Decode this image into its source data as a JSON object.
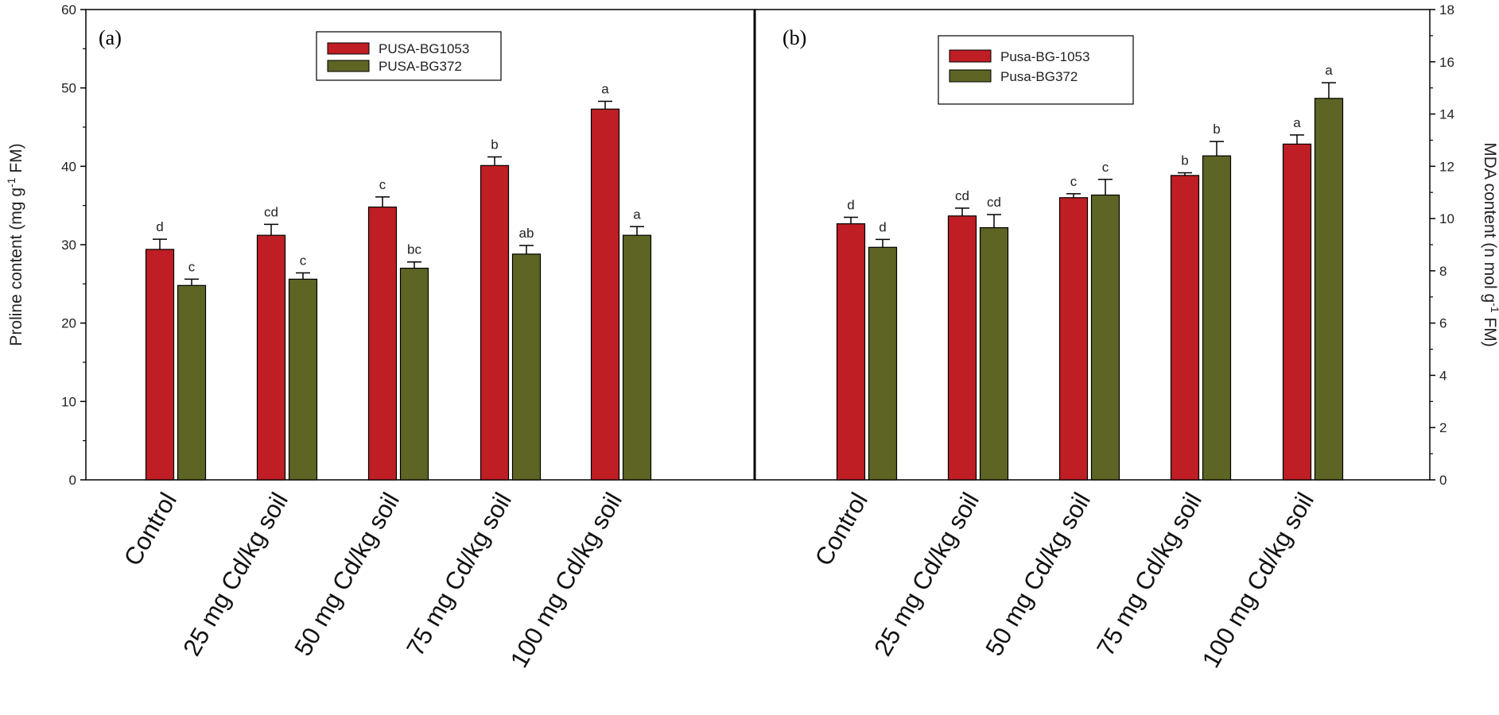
{
  "colors": {
    "series1": "#be1e24",
    "series2": "#5e6424",
    "axis": "#000000"
  },
  "chart_data": [
    {
      "type": "bar",
      "panel_label": "(a)",
      "categories": [
        "Control",
        "25 mg Cd/kg soil",
        "50 mg Cd/kg soil",
        "75 mg Cd/kg soil",
        "100 mg Cd/kg soil"
      ],
      "ylabel": "Proline content (mg g",
      "ylabel_sup": "-1",
      "ylabel_tail": " FM)",
      "yaxis_side": "left",
      "ylim": [
        0,
        60
      ],
      "yticks": [
        0,
        10,
        20,
        30,
        40,
        50,
        60
      ],
      "legend_position": "top-center",
      "series": [
        {
          "name": "PUSA-BG1053",
          "values": [
            29.4,
            31.2,
            34.8,
            40.1,
            47.3
          ],
          "errors": [
            1.3,
            1.4,
            1.3,
            1.1,
            1.0
          ],
          "letters": [
            "d",
            "cd",
            "c",
            "b",
            "a"
          ]
        },
        {
          "name": "PUSA-BG372",
          "values": [
            24.8,
            25.6,
            27.0,
            28.8,
            31.2
          ],
          "errors": [
            0.8,
            0.8,
            0.8,
            1.1,
            1.1
          ],
          "letters": [
            "c",
            "c",
            "bc",
            "ab",
            "a"
          ]
        }
      ]
    },
    {
      "type": "bar",
      "panel_label": "(b)",
      "categories": [
        "Control",
        "25 mg Cd/kg soil",
        "50 mg Cd/kg soil",
        "75 mg Cd/kg soil",
        "100 mg Cd/kg soil"
      ],
      "ylabel": "MDA content (n mol g",
      "ylabel_sup": "-1",
      "ylabel_tail": " FM)",
      "yaxis_side": "right",
      "ylim": [
        0,
        18
      ],
      "yticks": [
        0,
        2,
        4,
        6,
        8,
        10,
        12,
        14,
        16,
        18
      ],
      "legend_position": "top-center",
      "series": [
        {
          "name": "Pusa-BG-1053",
          "values": [
            9.8,
            10.1,
            10.8,
            11.65,
            12.85
          ],
          "errors": [
            0.25,
            0.3,
            0.15,
            0.1,
            0.35
          ],
          "letters": [
            "d",
            "cd",
            "c",
            "b",
            "a"
          ]
        },
        {
          "name": "Pusa-BG372",
          "values": [
            8.9,
            9.65,
            10.9,
            12.4,
            14.6
          ],
          "errors": [
            0.3,
            0.5,
            0.6,
            0.55,
            0.6
          ],
          "letters": [
            "d",
            "cd",
            "c",
            "b",
            "a"
          ]
        }
      ]
    }
  ]
}
